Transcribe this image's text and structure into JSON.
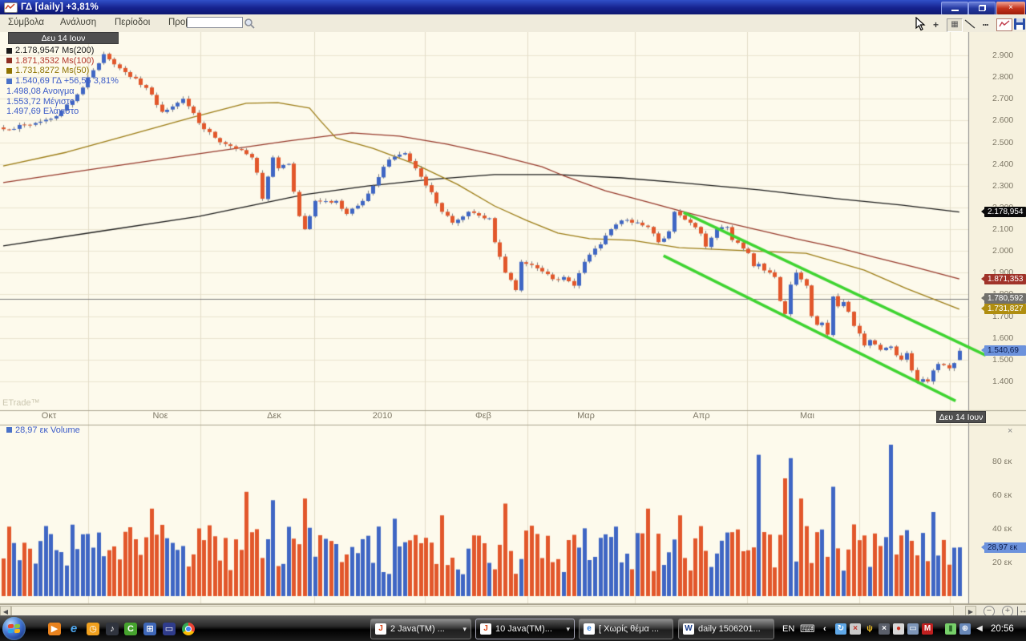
{
  "window": {
    "title": "ΓΔ [daily] +3,81%",
    "app_icon": "chart-zigzag-icon",
    "controls": [
      "minimize",
      "restore",
      "close"
    ]
  },
  "menu": {
    "items": [
      "Σύμβολα",
      "Ανάλυση",
      "Περίοδοι",
      "Προβολή"
    ],
    "search_value": ""
  },
  "toolbar": {
    "tools": [
      "crosshair-tool",
      "grid-tool",
      "trendline-tool",
      "dotted-grid-tool",
      "chart-style-tool",
      "save-tool"
    ],
    "glyphs": {
      "crosshair": "+",
      "grid": "▦",
      "dots": "┅"
    }
  },
  "chart": {
    "date_tooltip_top": "Δευ 14 Ιουν",
    "watermark": "ETrade™",
    "legend": [
      {
        "text": "2.178,9547 Ms(200)",
        "color": "#1A1A1A",
        "swatch": "#1A1A1A"
      },
      {
        "text": "1.871,3532 Ms(100)",
        "color": "#B3362A",
        "swatch": "#8E2F23"
      },
      {
        "text": "1.731,8272 Ms(50)",
        "color": "#8F7300",
        "swatch": "#8F7300"
      },
      {
        "text": "1.540,69 ΓΔ +56,56 3,81%",
        "color": "#3B5BC8",
        "swatch": "#4A72C8"
      },
      {
        "text": "1.498,08 Ανοιγμα",
        "color": "#3B5BC8",
        "swatch": null
      },
      {
        "text": "1.553,72 Μέγιστο",
        "color": "#3B5BC8",
        "swatch": null
      },
      {
        "text": "1.497,69 Ελάχιστο",
        "color": "#3B5BC8",
        "swatch": null
      }
    ],
    "price_axis": {
      "tick_labels": [
        "2.900",
        "2.800",
        "2.700",
        "2.600",
        "2.500",
        "2.400",
        "2.300",
        "2.200",
        "2.100",
        "2.000",
        "1.900",
        "1.800",
        "1.700",
        "1.600",
        "1.500",
        "1.400"
      ],
      "tick_values": [
        2900,
        2800,
        2700,
        2600,
        2500,
        2400,
        2300,
        2200,
        2100,
        2000,
        1900,
        1800,
        1700,
        1600,
        1500,
        1400
      ]
    },
    "price_tags": [
      {
        "text": "2.178,954",
        "value": 2178.95,
        "bg": "#0A0A0A",
        "fg": "#FFFFFF"
      },
      {
        "text": "1.871,353",
        "value": 1871.35,
        "bg": "#A03329",
        "fg": "#FFFFFF"
      },
      {
        "text": "1.780,592",
        "value": 1780.59,
        "bg": "#71706C",
        "fg": "#FFFFFF"
      },
      {
        "text": "1.731,827",
        "value": 1731.83,
        "bg": "#B08E10",
        "fg": "#FFFFFF"
      },
      {
        "text": "1.540,69",
        "value": 1540.69,
        "bg": "#6C92DC",
        "fg": "#0B1A4A"
      }
    ],
    "x_axis": {
      "month_labels": [
        "Οκτ",
        "Νοε",
        "Δεκ",
        "2010",
        "Φεβ",
        "Μαρ",
        "Απρ",
        "Μαι"
      ],
      "date_label": "Δευ 14 Ιουν"
    },
    "volume": {
      "legend_text": "28,97 εκ Volume",
      "ticks": [
        {
          "text": "80 εκ",
          "value": 80
        },
        {
          "text": "60 εκ",
          "value": 60
        },
        {
          "text": "40 εκ",
          "value": 40
        },
        {
          "text": "20 εκ",
          "value": 20
        }
      ],
      "tag": {
        "text": "28,97 εκ",
        "value": 28.97,
        "bg": "#6C92DC",
        "fg": "#0B1A4A"
      },
      "close_glyph": "×"
    }
  },
  "chart_data": {
    "type": "candlestick_with_volume",
    "symbol": "ΓΔ",
    "period": "daily",
    "change_pct_label": "+3,81%",
    "session_count": 182,
    "date_range": {
      "start": "Οκτ 2009",
      "end": "Δευ 14 Ιουν 2010"
    },
    "ylim": [
      1330,
      2980
    ],
    "grid": true,
    "last_session": {
      "date": "Δευ 14 Ιουν",
      "open": 1498.08,
      "high": 1553.72,
      "low": 1497.69,
      "close": 1540.69,
      "change": 56.56,
      "change_pct": 3.81,
      "volume_m": 28.97
    },
    "candle_up_color": "#3F66C4",
    "candle_down_color": "#E2572B",
    "wick_color": "#808080",
    "close_anchors": [
      [
        0,
        2560
      ],
      [
        5,
        2580
      ],
      [
        10,
        2620
      ],
      [
        14,
        2720
      ],
      [
        19,
        2905
      ],
      [
        22,
        2840
      ],
      [
        27,
        2750
      ],
      [
        30,
        2640
      ],
      [
        34,
        2700
      ],
      [
        38,
        2560
      ],
      [
        41,
        2500
      ],
      [
        44,
        2470
      ],
      [
        47,
        2430
      ],
      [
        48,
        2360
      ],
      [
        49,
        2240
      ],
      [
        51,
        2430
      ],
      [
        52,
        2380
      ],
      [
        54,
        2400
      ],
      [
        56,
        2160
      ],
      [
        57,
        2100
      ],
      [
        59,
        2230
      ],
      [
        63,
        2230
      ],
      [
        65,
        2170
      ],
      [
        68,
        2230
      ],
      [
        70,
        2300
      ],
      [
        73,
        2420
      ],
      [
        76,
        2450
      ],
      [
        78,
        2380
      ],
      [
        81,
        2270
      ],
      [
        83,
        2180
      ],
      [
        85,
        2130
      ],
      [
        88,
        2180
      ],
      [
        92,
        2150
      ],
      [
        93,
        2040
      ],
      [
        95,
        1900
      ],
      [
        97,
        1820
      ],
      [
        98,
        1950
      ],
      [
        101,
        1920
      ],
      [
        104,
        1870
      ],
      [
        106,
        1880
      ],
      [
        108,
        1840
      ],
      [
        110,
        1950
      ],
      [
        113,
        2030
      ],
      [
        115,
        2100
      ],
      [
        117,
        2140
      ],
      [
        119,
        2130
      ],
      [
        122,
        2110
      ],
      [
        124,
        2040
      ],
      [
        126,
        2090
      ],
      [
        127,
        2180
      ],
      [
        130,
        2130
      ],
      [
        132,
        2080
      ],
      [
        133,
        2020
      ],
      [
        135,
        2100
      ],
      [
        137,
        2110
      ],
      [
        138,
        2050
      ],
      [
        141,
        1990
      ],
      [
        142,
        1930
      ],
      [
        143,
        1940
      ],
      [
        144,
        1910
      ],
      [
        146,
        1880
      ],
      [
        147,
        1770
      ],
      [
        148,
        1710
      ],
      [
        149,
        1845
      ],
      [
        150,
        1900
      ],
      [
        152,
        1840
      ],
      [
        153,
        1700
      ],
      [
        154,
        1660
      ],
      [
        155,
        1670
      ],
      [
        156,
        1615
      ],
      [
        157,
        1790
      ],
      [
        158,
        1745
      ],
      [
        159,
        1765
      ],
      [
        160,
        1720
      ],
      [
        161,
        1655
      ],
      [
        162,
        1620
      ],
      [
        163,
        1565
      ],
      [
        164,
        1590
      ],
      [
        165,
        1570
      ],
      [
        166,
        1545
      ],
      [
        168,
        1560
      ],
      [
        169,
        1520
      ],
      [
        170,
        1500
      ],
      [
        171,
        1530
      ],
      [
        172,
        1450
      ],
      [
        173,
        1400
      ],
      [
        174,
        1410
      ],
      [
        175,
        1400
      ],
      [
        176,
        1450
      ],
      [
        177,
        1480
      ],
      [
        178,
        1475
      ],
      [
        179,
        1460
      ],
      [
        180,
        1484.13
      ],
      [
        181,
        1540.69
      ]
    ],
    "indicators": {
      "ma200": {
        "label": "Ms(200)",
        "current": 2178.9547,
        "color": "#1B1B1B",
        "points": [
          [
            0,
            2023
          ],
          [
            18,
            2089
          ],
          [
            37,
            2159
          ],
          [
            57,
            2259
          ],
          [
            69,
            2299
          ],
          [
            81,
            2329
          ],
          [
            93,
            2351
          ],
          [
            105,
            2351
          ],
          [
            117,
            2336
          ],
          [
            128,
            2314
          ],
          [
            143,
            2281
          ],
          [
            158,
            2240
          ],
          [
            170,
            2211
          ],
          [
            181,
            2179
          ]
        ]
      },
      "ma100": {
        "label": "Ms(100)",
        "current": 1871.3532,
        "color": "#97392B",
        "points": [
          [
            0,
            2314
          ],
          [
            18,
            2380
          ],
          [
            36,
            2443
          ],
          [
            54,
            2506
          ],
          [
            66,
            2543
          ],
          [
            75,
            2528
          ],
          [
            84,
            2491
          ],
          [
            93,
            2443
          ],
          [
            102,
            2387
          ],
          [
            106,
            2347
          ],
          [
            114,
            2277
          ],
          [
            122,
            2225
          ],
          [
            128,
            2185
          ],
          [
            135,
            2141
          ],
          [
            143,
            2096
          ],
          [
            150,
            2056
          ],
          [
            158,
            2015
          ],
          [
            165,
            1971
          ],
          [
            173,
            1923
          ],
          [
            181,
            1871.35
          ]
        ]
      },
      "ma50": {
        "label": "Ms(50)",
        "current": 1731.8272,
        "color": "#9C7C14",
        "points": [
          [
            0,
            2391
          ],
          [
            12,
            2454
          ],
          [
            24,
            2535
          ],
          [
            36,
            2616
          ],
          [
            46,
            2679
          ],
          [
            52,
            2682
          ],
          [
            58,
            2657
          ],
          [
            60,
            2600
          ],
          [
            63,
            2520
          ],
          [
            70,
            2472
          ],
          [
            78,
            2399
          ],
          [
            86,
            2306
          ],
          [
            93,
            2207
          ],
          [
            99,
            2141
          ],
          [
            105,
            2082
          ],
          [
            111,
            2056
          ],
          [
            119,
            2049
          ],
          [
            128,
            2015
          ],
          [
            138,
            2004
          ],
          [
            152,
            1989
          ],
          [
            163,
            1912
          ],
          [
            171,
            1827
          ],
          [
            181,
            1731.83
          ]
        ]
      },
      "hline": {
        "value": 1780.592,
        "color": "#7A7A7A"
      },
      "channel": {
        "color": "#3FD431",
        "width": 3.6,
        "upper": [
          [
            128.8,
            2177
          ],
          [
            186,
            1520
          ]
        ],
        "lower": [
          [
            125,
            1978
          ],
          [
            180.3,
            1310
          ]
        ]
      }
    },
    "volume_axis": {
      "ticks_m": [
        80,
        60,
        40,
        20
      ],
      "unit": "εκ"
    },
    "volume_spikes": [
      [
        28,
        52
      ],
      [
        46,
        62
      ],
      [
        51,
        57
      ],
      [
        57,
        58
      ],
      [
        74,
        46
      ],
      [
        83,
        48
      ],
      [
        95,
        55
      ],
      [
        122,
        52
      ],
      [
        128,
        48
      ],
      [
        143,
        84
      ],
      [
        148,
        70
      ],
      [
        149,
        82
      ],
      [
        151,
        58
      ],
      [
        157,
        65
      ],
      [
        168,
        90
      ],
      [
        176,
        50
      ],
      [
        181,
        28.97
      ]
    ]
  },
  "scrollbar": {
    "zoom_out": "−",
    "zoom_in": "+",
    "fit": "↔",
    "left": "◀",
    "right": "▶"
  },
  "taskbar": {
    "start": "start-button",
    "quicklaunch": [
      {
        "name": "media-player-icon",
        "glyph": "▶",
        "bg": "#E8821E",
        "fg": "#FFFFFF"
      },
      {
        "name": "internet-explorer-icon",
        "glyph": "e",
        "bg": "",
        "fg": "#4FA8F0"
      },
      {
        "name": "clock-icon",
        "glyph": "◷",
        "bg": "#F0A01E",
        "fg": "#FFFFFF"
      },
      {
        "name": "music-player-icon",
        "glyph": "♪",
        "bg": "#30343E",
        "fg": "#FFFFFF"
      },
      {
        "name": "green-app-icon",
        "glyph": "C",
        "bg": "#46A32E",
        "fg": "#FFFFFF"
      },
      {
        "name": "window-switcher-icon",
        "glyph": "⊞",
        "bg": "#3E67B8",
        "fg": "#FFFFFF"
      },
      {
        "name": "show-desktop-icon",
        "glyph": "▭",
        "bg": "#2F3C8C",
        "fg": "#FFFFFF"
      },
      {
        "name": "chrome-icon",
        "glyph": "",
        "bg": "chrome",
        "fg": ""
      }
    ],
    "buttons": [
      {
        "label": "2 Java(TM) ...",
        "icon": "java-icon",
        "icon_glyph": "J",
        "icon_fg": "#d84315",
        "arrow": true,
        "active": false
      },
      {
        "label": "10 Java(TM)...",
        "icon": "java-icon",
        "icon_glyph": "J",
        "icon_fg": "#d84315",
        "arrow": true,
        "active": true
      },
      {
        "label": "[ Χωρίς θέμα ...",
        "icon": "internet-explorer-icon",
        "icon_glyph": "e",
        "icon_fg": "#2a7de0",
        "arrow": false,
        "active": false
      },
      {
        "label": "daily 1506201...",
        "icon": "word-icon",
        "icon_glyph": "W",
        "icon_fg": "#1a3e8c",
        "arrow": false,
        "active": false
      }
    ],
    "tray": {
      "language": "EN",
      "keyboard_glyph": "⌨",
      "chevron": "‹",
      "icons": [
        {
          "name": "update-tray-icon",
          "glyph": "↻",
          "bg": "#5FA8E8",
          "fg": "#FFFFFF"
        },
        {
          "name": "error-tray-icon",
          "glyph": "×",
          "bg": "#C9C9C9",
          "fg": "#C23327"
        },
        {
          "name": "wireless-tray-icon",
          "glyph": "ψ",
          "bg": "",
          "fg": "#F2C229"
        },
        {
          "name": "messenger-tray-icon",
          "glyph": "×",
          "bg": "#5A5F6A",
          "fg": "#FFFFFF"
        },
        {
          "name": "alert-tray-icon",
          "glyph": "●",
          "bg": "#D8D8D8",
          "fg": "#CC3322"
        },
        {
          "name": "display-tray-icon",
          "glyph": "▭",
          "bg": "#7E96B8",
          "fg": "#FFFFFF"
        },
        {
          "name": "mcafee-tray-icon",
          "glyph": "M",
          "bg": "#C02020",
          "fg": "#FFFFFF"
        },
        {
          "name": "battery-tray-icon",
          "glyph": "▮",
          "bg": "#77D06A",
          "fg": "#2A6A2A"
        },
        {
          "name": "network-tray-icon",
          "glyph": "⊕",
          "bg": "#6888B8",
          "fg": "#FFFFFF"
        },
        {
          "name": "volume-tray-icon",
          "glyph": "◀",
          "bg": "",
          "fg": "#E8E8E8"
        }
      ],
      "time": "20:56"
    }
  }
}
